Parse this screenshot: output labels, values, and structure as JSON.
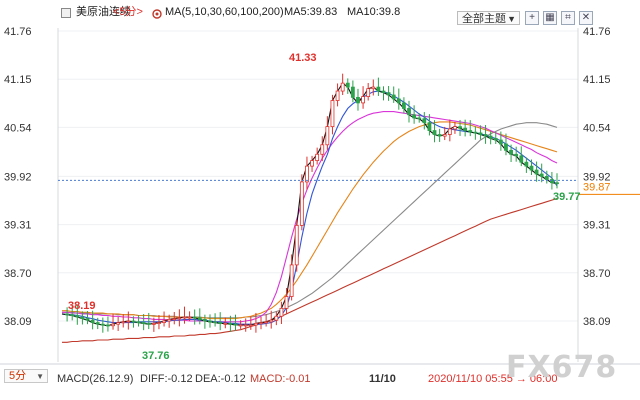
{
  "header": {
    "symbol": "美原油连续",
    "period": "<5分>",
    "ma_label": "MA(5,10,30,60,100,200)",
    "ma5_label": "MA5:39.83",
    "ma10_label": "MA10:39.8",
    "theme_button": "全部主题",
    "window_buttons": [
      "plus-box-icon",
      "grid-icon",
      "crop-icon",
      "close-x-icon"
    ]
  },
  "price_axis": {
    "left_ticks": [
      "41.76",
      "41.15",
      "40.54",
      "39.92",
      "39.31",
      "38.70",
      "38.09"
    ],
    "right_ticks": [
      "41.76",
      "41.15",
      "40.54",
      "39.92",
      "39.31",
      "38.70",
      "38.09"
    ],
    "current_price_badge": "39.87"
  },
  "chart_data": {
    "type": "line",
    "y_range": [
      37.5,
      42.0
    ],
    "current_price": 39.87,
    "annotations": [
      {
        "text": "41.33",
        "value": 41.33,
        "color": "#e0302b"
      },
      {
        "text": "38.19",
        "value": 38.19,
        "color": "#e0302b"
      },
      {
        "text": "37.76",
        "value": 37.76,
        "color": "#2aa34a"
      },
      {
        "text": "39.77",
        "value": 39.77,
        "color": "#2aa34a"
      }
    ],
    "series": [
      {
        "name": "MA5",
        "color": "#111111",
        "values": [
          38.18,
          38.17,
          38.16,
          38.14,
          38.12,
          38.1,
          38.07,
          38.05,
          38.04,
          38.03,
          38.05,
          38.07,
          38.08,
          38.09,
          38.08,
          38.07,
          38.06,
          38.05,
          38.06,
          38.07,
          38.09,
          38.11,
          38.12,
          38.13,
          38.14,
          38.14,
          38.13,
          38.11,
          38.09,
          38.08,
          38.07,
          38.06,
          38.06,
          38.05,
          38.04,
          38.04,
          38.04,
          38.04,
          38.06,
          38.07,
          38.08,
          38.1,
          38.15,
          38.25,
          38.4,
          38.8,
          39.3,
          39.85,
          40.05,
          40.12,
          40.2,
          40.32,
          40.55,
          40.88,
          41.0,
          41.1,
          41.05,
          40.92,
          40.85,
          40.93,
          41.03,
          41.05,
          41.0,
          40.98,
          40.95,
          40.9,
          40.85,
          40.78,
          40.7,
          40.66,
          40.65,
          40.6,
          40.5,
          40.45,
          40.43,
          40.45,
          40.52,
          40.55,
          40.53,
          40.5,
          40.48,
          40.47,
          40.45,
          40.43,
          40.4,
          40.38,
          40.33,
          40.25,
          40.2,
          40.18,
          40.1,
          40.05,
          40.0,
          39.95,
          39.92,
          39.88,
          39.84,
          39.83
        ]
      },
      {
        "name": "MA10",
        "color": "#3055d9",
        "values": [
          38.18,
          38.17,
          38.17,
          38.16,
          38.15,
          38.13,
          38.12,
          38.1,
          38.09,
          38.08,
          38.07,
          38.07,
          38.07,
          38.07,
          38.07,
          38.08,
          38.08,
          38.08,
          38.08,
          38.08,
          38.08,
          38.09,
          38.1,
          38.1,
          38.11,
          38.11,
          38.11,
          38.1,
          38.1,
          38.09,
          38.08,
          38.08,
          38.07,
          38.06,
          38.06,
          38.05,
          38.05,
          38.05,
          38.05,
          38.05,
          38.06,
          38.07,
          38.1,
          38.16,
          38.26,
          38.48,
          38.8,
          39.15,
          39.45,
          39.7,
          39.88,
          40.05,
          40.2,
          40.4,
          40.55,
          40.68,
          40.78,
          40.84,
          40.88,
          40.92,
          40.96,
          40.99,
          41.0,
          40.99,
          40.97,
          40.94,
          40.9,
          40.86,
          40.81,
          40.76,
          40.71,
          40.67,
          40.62,
          40.58,
          40.55,
          40.53,
          40.52,
          40.51,
          40.5,
          40.49,
          40.48,
          40.47,
          40.46,
          40.44,
          40.42,
          40.4,
          40.37,
          40.33,
          40.29,
          40.25,
          40.2,
          40.15,
          40.1,
          40.05,
          40.0,
          39.95,
          39.9,
          39.8
        ]
      },
      {
        "name": "MA30",
        "color": "#d935d9",
        "values": [
          38.2,
          38.2,
          38.19,
          38.19,
          38.18,
          38.18,
          38.17,
          38.17,
          38.16,
          38.16,
          38.15,
          38.15,
          38.14,
          38.14,
          38.13,
          38.13,
          38.12,
          38.12,
          38.11,
          38.11,
          38.11,
          38.1,
          38.1,
          38.1,
          38.1,
          38.09,
          38.09,
          38.09,
          38.09,
          38.09,
          38.08,
          38.08,
          38.08,
          38.08,
          38.08,
          38.08,
          38.09,
          38.1,
          38.12,
          38.15,
          38.2,
          38.3,
          38.45,
          38.65,
          38.9,
          39.15,
          39.38,
          39.58,
          39.75,
          39.9,
          40.03,
          40.15,
          40.25,
          40.34,
          40.42,
          40.49,
          40.55,
          40.6,
          40.64,
          40.67,
          40.7,
          40.72,
          40.73,
          40.74,
          40.74,
          40.74,
          40.73,
          40.72,
          40.71,
          40.7,
          40.69,
          40.68,
          40.67,
          40.66,
          40.65,
          40.64,
          40.63,
          40.62,
          40.61,
          40.6,
          40.59,
          40.57,
          40.55,
          40.53,
          40.5,
          40.47,
          40.44,
          40.41,
          40.38,
          40.35,
          40.32,
          40.29,
          40.26,
          40.22,
          40.19,
          40.16,
          40.12,
          40.09
        ]
      },
      {
        "name": "MA60",
        "color": "#e6851a",
        "values": [
          38.22,
          38.22,
          38.21,
          38.21,
          38.2,
          38.2,
          38.19,
          38.19,
          38.19,
          38.18,
          38.18,
          38.18,
          38.17,
          38.17,
          38.17,
          38.16,
          38.16,
          38.16,
          38.15,
          38.15,
          38.15,
          38.14,
          38.14,
          38.14,
          38.14,
          38.13,
          38.13,
          38.13,
          38.13,
          38.12,
          38.12,
          38.12,
          38.12,
          38.12,
          38.12,
          38.13,
          38.14,
          38.15,
          38.17,
          38.19,
          38.22,
          38.25,
          38.3,
          38.36,
          38.43,
          38.51,
          38.6,
          38.7,
          38.8,
          38.91,
          39.02,
          39.13,
          39.24,
          39.35,
          39.46,
          39.56,
          39.66,
          39.76,
          39.85,
          39.94,
          40.02,
          40.1,
          40.17,
          40.24,
          40.3,
          40.36,
          40.41,
          40.45,
          40.49,
          40.52,
          40.55,
          40.57,
          40.59,
          40.6,
          40.61,
          40.61,
          40.61,
          40.6,
          40.59,
          40.58,
          40.57,
          40.55,
          40.53,
          40.51,
          40.49,
          40.47,
          40.45,
          40.43,
          40.41,
          40.39,
          40.37,
          40.35,
          40.33,
          40.31,
          40.29,
          40.27,
          40.25,
          40.23
        ]
      },
      {
        "name": "MA100",
        "color": "#8a8a8a",
        "values": [
          38.2,
          38.2,
          38.2,
          38.19,
          38.19,
          38.19,
          38.19,
          38.18,
          38.18,
          38.18,
          38.18,
          38.17,
          38.17,
          38.17,
          38.17,
          38.16,
          38.16,
          38.16,
          38.16,
          38.15,
          38.15,
          38.15,
          38.15,
          38.14,
          38.14,
          38.14,
          38.14,
          38.14,
          38.13,
          38.13,
          38.13,
          38.13,
          38.13,
          38.13,
          38.13,
          38.13,
          38.14,
          38.14,
          38.15,
          38.16,
          38.17,
          38.19,
          38.21,
          38.23,
          38.26,
          38.29,
          38.32,
          38.36,
          38.4,
          38.44,
          38.49,
          38.54,
          38.59,
          38.64,
          38.7,
          38.76,
          38.82,
          38.88,
          38.94,
          39.0,
          39.06,
          39.12,
          39.18,
          39.24,
          39.3,
          39.36,
          39.42,
          39.48,
          39.54,
          39.6,
          39.66,
          39.72,
          39.78,
          39.84,
          39.9,
          39.96,
          40.02,
          40.08,
          40.14,
          40.2,
          40.26,
          40.32,
          40.38,
          40.42,
          40.46,
          40.49,
          40.52,
          40.54,
          40.56,
          40.58,
          40.59,
          40.6,
          40.6,
          40.6,
          40.59,
          40.58,
          40.56,
          40.54
        ]
      },
      {
        "name": "MA200",
        "color": "#c0392b",
        "values": [
          37.82,
          37.82,
          37.83,
          37.83,
          37.84,
          37.84,
          37.84,
          37.85,
          37.85,
          37.85,
          37.86,
          37.86,
          37.86,
          37.87,
          37.87,
          37.87,
          37.88,
          37.88,
          37.88,
          37.89,
          37.89,
          37.89,
          37.9,
          37.9,
          37.9,
          37.91,
          37.91,
          37.92,
          37.92,
          37.93,
          37.93,
          37.94,
          37.95,
          37.96,
          37.97,
          37.98,
          38.0,
          38.02,
          38.04,
          38.06,
          38.08,
          38.1,
          38.12,
          38.15,
          38.18,
          38.21,
          38.24,
          38.27,
          38.3,
          38.33,
          38.36,
          38.39,
          38.42,
          38.45,
          38.48,
          38.51,
          38.54,
          38.57,
          38.6,
          38.63,
          38.66,
          38.69,
          38.72,
          38.75,
          38.78,
          38.81,
          38.84,
          38.87,
          38.9,
          38.93,
          38.96,
          38.99,
          39.02,
          39.05,
          39.08,
          39.11,
          39.14,
          39.17,
          39.2,
          39.23,
          39.26,
          39.29,
          39.32,
          39.35,
          39.38,
          39.4,
          39.42,
          39.44,
          39.46,
          39.48,
          39.5,
          39.52,
          39.54,
          39.56,
          39.58,
          39.6,
          39.62,
          39.64
        ]
      }
    ]
  },
  "footer": {
    "period_select": "5分",
    "macd_params": "MACD(26.12.9)",
    "diff": "DIFF:-0.12",
    "dea": "DEA:-0.12",
    "macd": "MACD:-0.01",
    "date_marker": "11/10",
    "time_range": "2020/11/10 05:55 → 06:00",
    "watermark": "FX678"
  },
  "colors": {
    "up": "#e0302b",
    "down": "#2aa34a",
    "price_line": "#4a7bd0",
    "badge": "#f07d00",
    "axis_text": "#333333"
  }
}
